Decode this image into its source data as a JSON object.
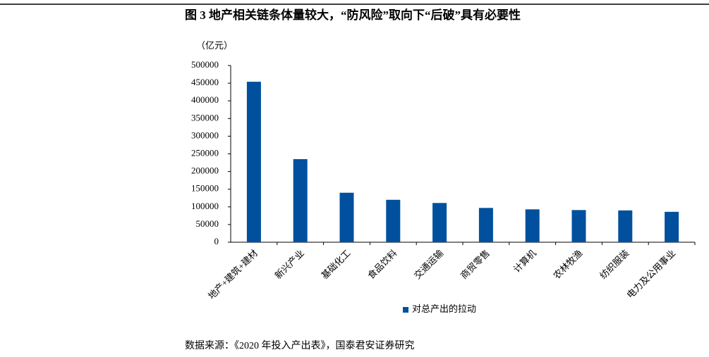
{
  "chart_data": {
    "type": "bar",
    "title": "图 3 地产相关链条体量较大，“防风险”取向下“后破”具有必要性",
    "y_label": "（亿元）",
    "categories": [
      "地产+建筑+建材",
      "新兴产业",
      "基础化工",
      "食品饮料",
      "交通运输",
      "商贸零售",
      "计算机",
      "农林牧渔",
      "纺织服装",
      "电力及公用事业"
    ],
    "series": [
      {
        "name": "对总产出的拉动",
        "color": "#00509e",
        "values": [
          454000,
          235000,
          140000,
          120000,
          111000,
          97000,
          93000,
          91000,
          90000,
          86000
        ]
      }
    ],
    "ylim": [
      0,
      500000
    ],
    "yticks": [
      0,
      50000,
      100000,
      150000,
      200000,
      250000,
      300000,
      350000,
      400000,
      450000,
      500000
    ],
    "source": "数据来源：《2020 年投入产出表》，国泰君安证券研究"
  }
}
